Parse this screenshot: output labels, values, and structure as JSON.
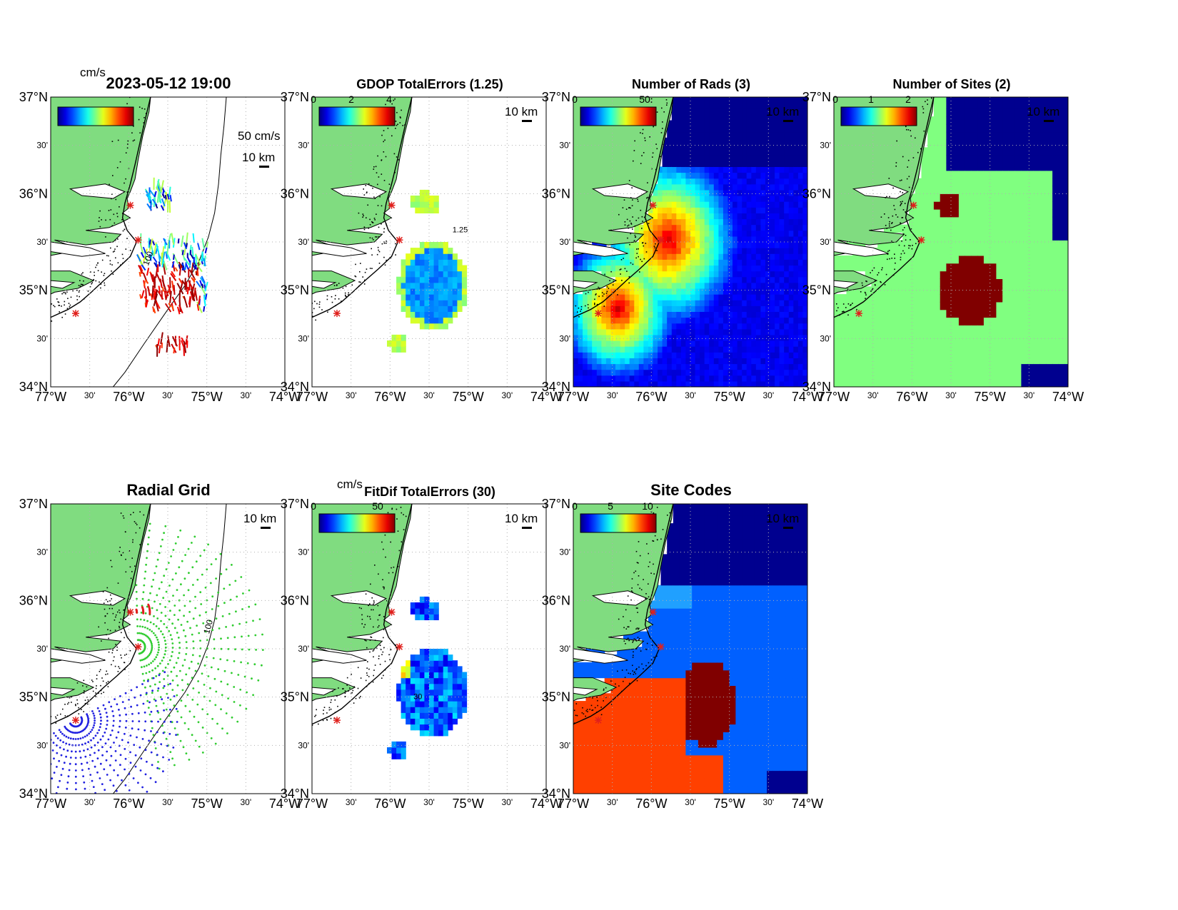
{
  "axes": {
    "lat_labels": [
      "37°N",
      "30'",
      "36°N",
      "30'",
      "35°N",
      "30'",
      "34°N"
    ],
    "lon_labels": [
      "77°W",
      "30'",
      "76°W",
      "30'",
      "75°W",
      "30'",
      "74°W"
    ],
    "lat_range": [
      34,
      37
    ],
    "lon_range": [
      -77,
      -74
    ]
  },
  "panels": [
    {
      "id": "total-currents",
      "title": "2023-05-12 19:00",
      "colorbar_unit": "cm/s",
      "colorbar_ticks": [],
      "scale_arrow_label": "50 cm/s",
      "scale_bar_label": "10 km",
      "contour_label": "100"
    },
    {
      "id": "gdop-total-errors",
      "title": "GDOP TotalErrors (1.25)",
      "colorbar_ticks": [
        "0",
        "2",
        "4"
      ],
      "scale_bar_label": "10 km",
      "contour_label": "1.25"
    },
    {
      "id": "number-of-rads",
      "title": "Number of Rads (3)",
      "colorbar_ticks": [
        "0",
        "50"
      ],
      "scale_bar_label": "10 km"
    },
    {
      "id": "number-of-sites",
      "title": "Number of Sites (2)",
      "colorbar_ticks": [
        "0",
        "1",
        "2"
      ],
      "scale_bar_label": "10 km"
    },
    {
      "id": "radial-grid",
      "title": "Radial Grid",
      "scale_bar_label": "10 km",
      "contour_label": "100"
    },
    {
      "id": "fitdif-total-errors",
      "title": "FitDif TotalErrors (30)",
      "colorbar_unit": "cm/s",
      "colorbar_ticks": [
        "0",
        "50"
      ],
      "scale_bar_label": "10 km",
      "contour_label": "30"
    },
    {
      "id": "site-codes",
      "title": "Site Codes",
      "colorbar_ticks": [
        "0",
        "5",
        "10"
      ],
      "scale_bar_label": "10 km"
    }
  ],
  "colors": {
    "land": "#80dc80",
    "site_marker": "#e0201c",
    "radial_site_red": "#e02020",
    "radial_site_green": "#30cc30",
    "radial_site_blue": "#2020e0",
    "nsites_0": "#00008f",
    "nsites_1": "#80ff80",
    "nsites_2": "#800000",
    "sitecode_a": "#00008f",
    "sitecode_b": "#0060ff",
    "sitecode_c": "#20a0ff",
    "sitecode_d": "#ff4000",
    "sitecode_e": "#800000"
  }
}
